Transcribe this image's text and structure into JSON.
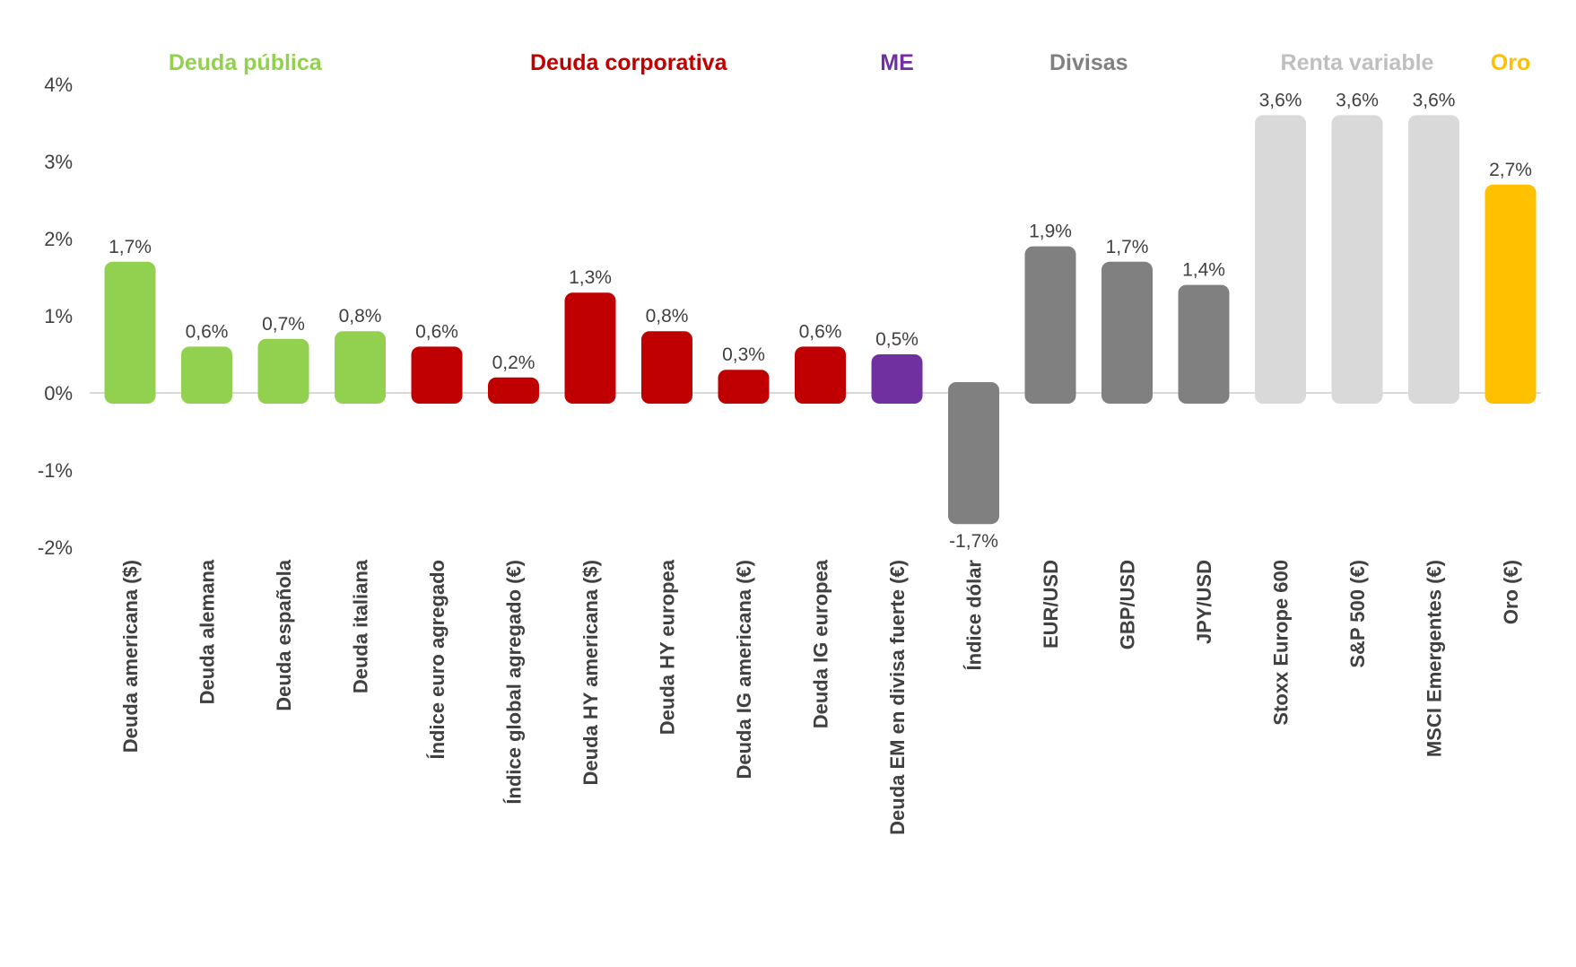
{
  "chart_data": {
    "type": "bar",
    "ylim": [
      -2,
      4
    ],
    "yticks": [
      "4%",
      "3%",
      "2%",
      "1%",
      "0%",
      "-1%",
      "-2%"
    ],
    "ytick_values": [
      4,
      3,
      2,
      1,
      0,
      -1,
      -2
    ],
    "groups": [
      {
        "name": "Deuda pública",
        "color": "#92D050",
        "count": 4
      },
      {
        "name": "Deuda corporativa",
        "color": "#C00000",
        "count": 6
      },
      {
        "name": "ME",
        "color": "#7030A0",
        "count": 1
      },
      {
        "name": "Divisas",
        "color": "#808080",
        "count": 4
      },
      {
        "name": "Renta variable",
        "color": "#BFBFBF",
        "count": 3
      },
      {
        "name": "Oro",
        "color": "#FFC000",
        "count": 1
      }
    ],
    "bars": [
      {
        "category": "Deuda americana ($)",
        "value": 1.7,
        "label": "1,7%",
        "color": "#92D050"
      },
      {
        "category": "Deuda alemana",
        "value": 0.6,
        "label": "0,6%",
        "color": "#92D050"
      },
      {
        "category": "Deuda española",
        "value": 0.7,
        "label": "0,7%",
        "color": "#92D050"
      },
      {
        "category": "Deuda italiana",
        "value": 0.8,
        "label": "0,8%",
        "color": "#92D050"
      },
      {
        "category": "Índice euro agregado",
        "value": 0.6,
        "label": "0,6%",
        "color": "#C00000"
      },
      {
        "category": "Índice global agregado (€)",
        "value": 0.2,
        "label": "0,2%",
        "color": "#C00000"
      },
      {
        "category": "Deuda HY americana ($)",
        "value": 1.3,
        "label": "1,3%",
        "color": "#C00000"
      },
      {
        "category": "Deuda HY europea",
        "value": 0.8,
        "label": "0,8%",
        "color": "#C00000"
      },
      {
        "category": "Deuda IG americana (€)",
        "value": 0.3,
        "label": "0,3%",
        "color": "#C00000"
      },
      {
        "category": "Deuda IG europea",
        "value": 0.6,
        "label": "0,6%",
        "color": "#C00000"
      },
      {
        "category": "Deuda EM en divisa fuerte (€)",
        "value": 0.5,
        "label": "0,5%",
        "color": "#7030A0"
      },
      {
        "category": "Índice dólar",
        "value": -1.7,
        "label": "-1,7%",
        "color": "#808080"
      },
      {
        "category": "EUR/USD",
        "value": 1.9,
        "label": "1,9%",
        "color": "#808080"
      },
      {
        "category": "GBP/USD",
        "value": 1.7,
        "label": "1,7%",
        "color": "#808080"
      },
      {
        "category": "JPY/USD",
        "value": 1.4,
        "label": "1,4%",
        "color": "#808080"
      },
      {
        "category": "Stoxx Europe 600",
        "value": 3.6,
        "label": "3,6%",
        "color": "#D9D9D9"
      },
      {
        "category": "S&P 500 (€)",
        "value": 3.6,
        "label": "3,6%",
        "color": "#D9D9D9"
      },
      {
        "category": "MSCI Emergentes (€)",
        "value": 3.6,
        "label": "3,6%",
        "color": "#D9D9D9"
      },
      {
        "category": "Oro (€)",
        "value": 2.7,
        "label": "2,7%",
        "color": "#FFC000"
      }
    ]
  }
}
